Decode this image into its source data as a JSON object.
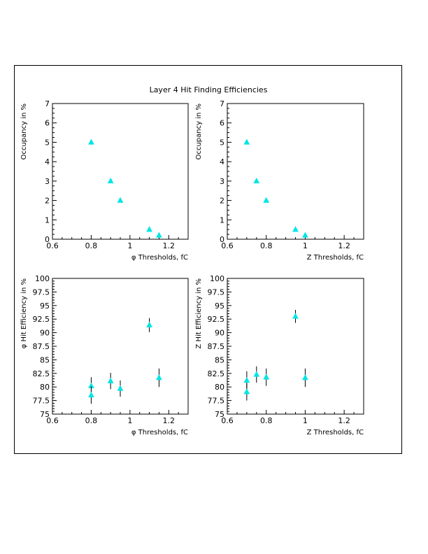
{
  "title": "Layer 4 Hit Finding Efficiencies",
  "marker_color": "#00e5e5",
  "chart_data": [
    {
      "type": "scatter",
      "panel": "top-left",
      "title": "",
      "xlabel": "φ Thresholds, fC",
      "ylabel": "Occupancy in %",
      "xlim": [
        0.6,
        1.3
      ],
      "ylim": [
        0,
        7
      ],
      "xticks": [
        0.6,
        0.8,
        1,
        1.2
      ],
      "xtick_labels": [
        "0.6",
        "0.8",
        "1",
        "1.2"
      ],
      "yticks": [
        0,
        1,
        2,
        3,
        4,
        5,
        6,
        7
      ],
      "ytick_labels": [
        "0",
        "1",
        "2",
        "3",
        "4",
        "5",
        "6",
        "7"
      ],
      "points": [
        {
          "x": 0.8,
          "y": 5.0
        },
        {
          "x": 0.9,
          "y": 3.0
        },
        {
          "x": 0.95,
          "y": 2.0
        },
        {
          "x": 1.1,
          "y": 0.5
        },
        {
          "x": 1.15,
          "y": 0.2
        }
      ]
    },
    {
      "type": "scatter",
      "panel": "top-right",
      "title": "",
      "xlabel": "Z Thresholds, fC",
      "ylabel": "Occupancy in %",
      "xlim": [
        0.6,
        1.3
      ],
      "ylim": [
        0,
        7
      ],
      "xticks": [
        0.6,
        0.8,
        1,
        1.2
      ],
      "xtick_labels": [
        "0.6",
        "0.8",
        "1",
        "1.2"
      ],
      "yticks": [
        0,
        1,
        2,
        3,
        4,
        5,
        6,
        7
      ],
      "ytick_labels": [
        "0",
        "1",
        "2",
        "3",
        "4",
        "5",
        "6",
        "7"
      ],
      "points": [
        {
          "x": 0.7,
          "y": 5.0
        },
        {
          "x": 0.75,
          "y": 3.0
        },
        {
          "x": 0.8,
          "y": 2.0
        },
        {
          "x": 0.95,
          "y": 0.5
        },
        {
          "x": 1.0,
          "y": 0.2
        }
      ]
    },
    {
      "type": "scatter",
      "panel": "bottom-left",
      "title": "",
      "xlabel": "φ Thresholds, fC",
      "ylabel": "φ Hit Efficiency in %",
      "xlim": [
        0.6,
        1.3
      ],
      "ylim": [
        75,
        100
      ],
      "xticks": [
        0.6,
        0.8,
        1,
        1.2
      ],
      "xtick_labels": [
        "0.6",
        "0.8",
        "1",
        "1.2"
      ],
      "yticks": [
        75,
        77.5,
        80,
        82.5,
        85,
        87.5,
        90,
        92.5,
        95,
        97.5,
        100
      ],
      "ytick_labels": [
        "75",
        "77.5",
        "80",
        "82.5",
        "85",
        "87.5",
        "90",
        "92.5",
        "95",
        "97.5",
        "100"
      ],
      "points": [
        {
          "x": 0.8,
          "y": 80.2,
          "err": 1.6
        },
        {
          "x": 0.8,
          "y": 78.5,
          "err": 1.6
        },
        {
          "x": 0.9,
          "y": 81.1,
          "err": 1.5
        },
        {
          "x": 0.95,
          "y": 79.7,
          "err": 1.5
        },
        {
          "x": 1.1,
          "y": 91.4,
          "err": 1.3
        },
        {
          "x": 1.15,
          "y": 81.7,
          "err": 1.7
        }
      ]
    },
    {
      "type": "scatter",
      "panel": "bottom-right",
      "title": "",
      "xlabel": "Z Thresholds, fC",
      "ylabel": "Z Hit Efficiency in %",
      "xlim": [
        0.6,
        1.3
      ],
      "ylim": [
        75,
        100
      ],
      "xticks": [
        0.6,
        0.8,
        1,
        1.2
      ],
      "xtick_labels": [
        "0.6",
        "0.8",
        "1",
        "1.2"
      ],
      "yticks": [
        75,
        77.5,
        80,
        82.5,
        85,
        87.5,
        90,
        92.5,
        95,
        97.5,
        100
      ],
      "ytick_labels": [
        "75",
        "77.5",
        "80",
        "82.5",
        "85",
        "87.5",
        "90",
        "92.5",
        "95",
        "97.5",
        "100"
      ],
      "points": [
        {
          "x": 0.7,
          "y": 81.2,
          "err": 1.7
        },
        {
          "x": 0.7,
          "y": 79.1,
          "err": 1.6
        },
        {
          "x": 0.75,
          "y": 82.3,
          "err": 1.5
        },
        {
          "x": 0.8,
          "y": 81.8,
          "err": 1.6
        },
        {
          "x": 0.95,
          "y": 93.0,
          "err": 1.2
        },
        {
          "x": 1.0,
          "y": 81.7,
          "err": 1.7
        }
      ]
    }
  ]
}
